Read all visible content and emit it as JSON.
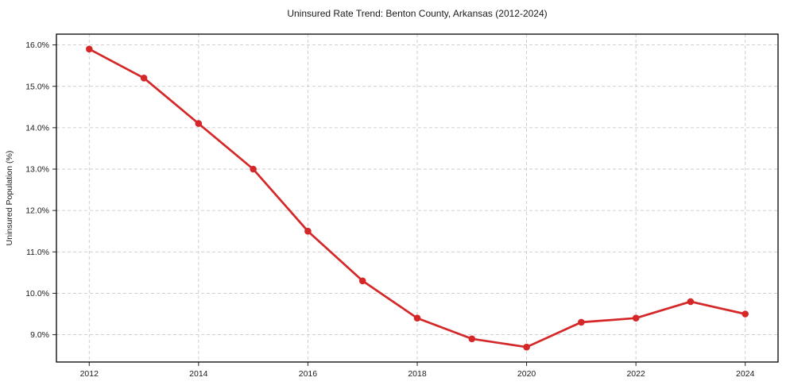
{
  "chart_data": {
    "type": "line",
    "title": "Uninsured Rate Trend: Benton County, Arkansas (2012-2024)",
    "xlabel": "",
    "ylabel": "Uninsured Population (%)",
    "x": [
      2012,
      2013,
      2014,
      2015,
      2016,
      2017,
      2018,
      2019,
      2020,
      2021,
      2022,
      2023,
      2024
    ],
    "values": [
      15.9,
      15.2,
      14.1,
      13.0,
      11.5,
      10.3,
      9.4,
      8.9,
      8.7,
      9.3,
      9.4,
      9.8,
      9.5
    ],
    "xlim": [
      2011.4,
      2024.6
    ],
    "ylim": [
      8.34,
      16.26
    ],
    "xticks": [
      2012,
      2014,
      2016,
      2018,
      2020,
      2022,
      2024
    ],
    "xtick_labels": [
      "2012",
      "2014",
      "2016",
      "2018",
      "2020",
      "2022",
      "2024"
    ],
    "yticks": [
      9.0,
      10.0,
      11.0,
      12.0,
      13.0,
      14.0,
      15.0,
      16.0
    ],
    "ytick_labels": [
      "9.0%",
      "10.0%",
      "11.0%",
      "12.0%",
      "13.0%",
      "14.0%",
      "15.0%",
      "16.0%"
    ],
    "grid": true,
    "grid_style": "dashed",
    "legend_position": "none",
    "line_color": "#d62728",
    "marker": "circle"
  },
  "style": {
    "accent_color": "#d62728",
    "grid_color": "#c9c9c9",
    "axis_color": "#000000",
    "text_color": "#1a1a1a",
    "background_color": "#ffffff"
  }
}
